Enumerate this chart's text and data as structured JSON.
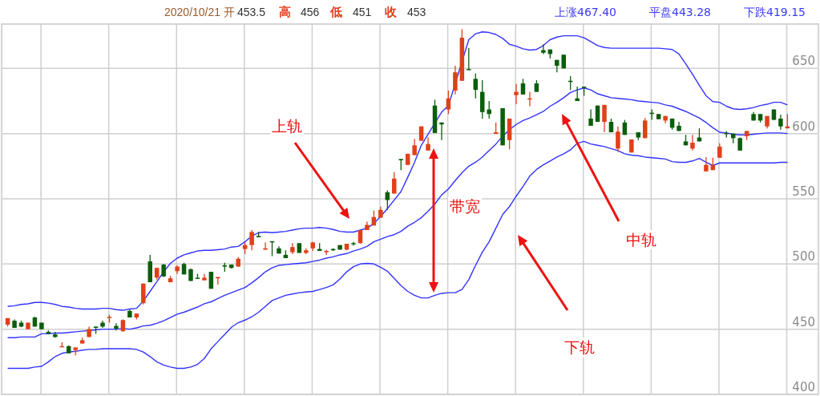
{
  "chart_data": {
    "type": "candlestick",
    "categories": [
      null,
      null,
      null,
      null,
      null,
      null,
      null,
      null,
      null,
      null,
      null,
      null,
      null,
      null,
      null,
      null,
      null,
      null,
      null,
      null,
      null,
      null,
      null,
      null,
      null,
      null,
      null,
      null,
      null,
      null,
      null,
      null,
      null,
      null,
      null,
      null,
      null,
      null,
      null,
      null,
      null,
      null,
      null,
      null,
      null,
      null,
      null,
      null,
      null,
      null,
      null,
      null,
      null,
      null,
      null,
      null,
      null,
      null,
      null,
      null,
      null,
      null,
      null,
      null,
      null,
      null,
      null,
      null,
      null,
      null,
      null,
      null,
      null,
      null,
      null,
      null,
      null,
      null,
      null,
      null,
      null,
      null,
      null,
      null,
      null,
      null,
      null,
      null,
      null,
      null,
      null,
      null,
      null,
      null,
      null,
      null,
      null,
      null,
      null,
      null,
      null,
      null,
      null,
      null,
      null,
      null,
      null,
      null,
      null,
      null,
      null,
      null,
      null,
      null,
      null,
      null
    ],
    "ohlc": [
      [
        453.5,
        458.5,
        452,
        458.5
      ],
      [
        456.5,
        457.5,
        451,
        451
      ],
      [
        455,
        456.5,
        451.5,
        452
      ],
      [
        450,
        455,
        450,
        455
      ],
      [
        459,
        459.5,
        452,
        452
      ],
      [
        455,
        455,
        450,
        450
      ],
      [
        448,
        449,
        446.5,
        446.5
      ],
      [
        446,
        448,
        443.5,
        444
      ],
      [
        436.5,
        440,
        436.5,
        437
      ],
      [
        437,
        437.5,
        431.5,
        431.5
      ],
      [
        434,
        436,
        430,
        436
      ],
      [
        439,
        443.5,
        439,
        441.5
      ],
      [
        444,
        452,
        444,
        450
      ],
      [
        452,
        452,
        446.5,
        451
      ],
      [
        455,
        456.5,
        451,
        452
      ],
      [
        459,
        461,
        455,
        459.5
      ],
      [
        452.5,
        454.5,
        449,
        450.5
      ],
      [
        448.5,
        457.5,
        448,
        457
      ],
      [
        464,
        465,
        459,
        459
      ],
      [
        459,
        462,
        457.5,
        462
      ],
      [
        470,
        485,
        469,
        485
      ],
      [
        502,
        507,
        486,
        486
      ],
      [
        489.5,
        497,
        488,
        497
      ],
      [
        499.5,
        500,
        490,
        490.5
      ],
      [
        486,
        491,
        486,
        489
      ],
      [
        494.5,
        499,
        492.5,
        498
      ],
      [
        500,
        501,
        492,
        492
      ],
      [
        496,
        496.5,
        487,
        487
      ],
      [
        489.5,
        492.5,
        489,
        489
      ],
      [
        487.5,
        492.5,
        487.5,
        489.5
      ],
      [
        494,
        494,
        481,
        481
      ],
      [
        489,
        490,
        484,
        490
      ],
      [
        499,
        501,
        494,
        498
      ],
      [
        499.5,
        499.5,
        496.5,
        497
      ],
      [
        498,
        505.5,
        498,
        504
      ],
      [
        511.5,
        516.5,
        507.5,
        514.5
      ],
      [
        514.5,
        526,
        510.5,
        524.5
      ],
      [
        521.5,
        524.5,
        520.5,
        520.5
      ],
      [
        511,
        516.5,
        511,
        512
      ],
      [
        517.5,
        517.5,
        506,
        517
      ],
      [
        512,
        513.5,
        508,
        508
      ],
      [
        507,
        510.5,
        504.5,
        504.5
      ],
      [
        509,
        516,
        507.5,
        513
      ],
      [
        516,
        516,
        508.5,
        508.5
      ],
      [
        508.5,
        512,
        507.5,
        510.5
      ],
      [
        512,
        517,
        510,
        516.5
      ],
      [
        511.5,
        516,
        510,
        510
      ],
      [
        509.5,
        511,
        507,
        510
      ],
      [
        511.5,
        512,
        510,
        510.5
      ],
      [
        514.5,
        514.5,
        511,
        511
      ],
      [
        511,
        515.5,
        510.5,
        515.5
      ],
      [
        516,
        517,
        514,
        515.5
      ],
      [
        516,
        526,
        515.5,
        526
      ],
      [
        526,
        532.5,
        526,
        530
      ],
      [
        529.5,
        541,
        529.5,
        536
      ],
      [
        535.5,
        544,
        535.5,
        541.5
      ],
      [
        555,
        556.5,
        541.5,
        549
      ],
      [
        554,
        570.5,
        554,
        565.5
      ],
      [
        580.5,
        580.5,
        572,
        580
      ],
      [
        576,
        584.5,
        576,
        584.5
      ],
      [
        583.5,
        596,
        583.5,
        591
      ],
      [
        594.5,
        605.5,
        594.5,
        605.5
      ],
      [
        587,
        597,
        587,
        592
      ],
      [
        621.5,
        626,
        600.5,
        600.5
      ],
      [
        608.5,
        608.5,
        595,
        607
      ],
      [
        618.5,
        633,
        615,
        627
      ],
      [
        633,
        652,
        630,
        647
      ],
      [
        640.5,
        680,
        640.5,
        673.5
      ],
      [
        649.5,
        665.5,
        649,
        649
      ],
      [
        642,
        646,
        627,
        633.5
      ],
      [
        632,
        641,
        611.5,
        616.5
      ],
      [
        618.5,
        625,
        611.5,
        615
      ],
      [
        599.8,
        608.5,
        599.8,
        601
      ],
      [
        619.5,
        619.5,
        591,
        591
      ],
      [
        595,
        611.5,
        588,
        611.5
      ],
      [
        629.5,
        638,
        622.5,
        632
      ],
      [
        638.5,
        642,
        630,
        630
      ],
      [
        626.5,
        632,
        621,
        627
      ],
      [
        638.5,
        641,
        632,
        632
      ],
      [
        664,
        668.5,
        661,
        662
      ],
      [
        664.5,
        664.5,
        657.5,
        661
      ],
      [
        656.5,
        656.5,
        647,
        652
      ],
      [
        660.5,
        660.5,
        650,
        650
      ],
      [
        640.5,
        644,
        633.5,
        640
      ],
      [
        627,
        636,
        625,
        625
      ],
      [
        636,
        636,
        629,
        635
      ],
      [
        611.5,
        618.5,
        606,
        606
      ],
      [
        621.5,
        621.5,
        609,
        609
      ],
      [
        609,
        622,
        601,
        622
      ],
      [
        609,
        611.5,
        601,
        601
      ],
      [
        588.5,
        605.5,
        586,
        601.5
      ],
      [
        608.5,
        610.5,
        599,
        599
      ],
      [
        585.5,
        595.5,
        585.5,
        595.5
      ],
      [
        601,
        601,
        595,
        597
      ],
      [
        596.5,
        612,
        596.5,
        610
      ],
      [
        616,
        618.5,
        610.5,
        615
      ],
      [
        615,
        615,
        611,
        611
      ],
      [
        610,
        613.5,
        608,
        613.5
      ],
      [
        611.5,
        611.5,
        603,
        604.5
      ],
      [
        606,
        609,
        602,
        602
      ],
      [
        594,
        599,
        591,
        591
      ],
      [
        588.5,
        599,
        587,
        593
      ],
      [
        597,
        604,
        594,
        594
      ],
      [
        571,
        582,
        571,
        576
      ],
      [
        572,
        581.5,
        572,
        576
      ],
      [
        581.5,
        592.5,
        581.5,
        590
      ],
      [
        600.5,
        602,
        597,
        600
      ],
      [
        600,
        600,
        592.5,
        596.5
      ],
      [
        596.5,
        597,
        587,
        587
      ],
      [
        598,
        602,
        595,
        602
      ],
      [
        615,
        616.5,
        610,
        610
      ],
      [
        615,
        615,
        608.5,
        610
      ],
      [
        605.5,
        613.5,
        604,
        613.5
      ],
      [
        618.5,
        618.5,
        610.5,
        610.5
      ],
      [
        611.5,
        614.5,
        603,
        605.5
      ],
      [
        604,
        615,
        604,
        605.5
      ]
    ],
    "colors": [
      "#e0401a",
      "#0b5e0b",
      "#0b5e0b",
      "#e0401a",
      "#0b5e0b",
      "#0b5e0b",
      "#0b5e0b",
      "#0b5e0b",
      "#e0401a",
      "#0b5e0b",
      "#e0401a",
      "#e0401a",
      "#e0401a",
      "#0b5e0b",
      "#0b5e0b",
      "#e0401a",
      "#0b5e0b",
      "#e0401a",
      "#0b5e0b",
      "#e0401a",
      "#e0401a",
      "#0b5e0b",
      "#e0401a",
      "#0b5e0b",
      "#e0401a",
      "#e0401a",
      "#0b5e0b",
      "#0b5e0b",
      "#0b5e0b",
      "#e0401a",
      "#0b5e0b",
      "#e0401a",
      "#0b5e0b",
      "#0b5e0b",
      "#e0401a",
      "#e0401a",
      "#e0401a",
      "#0b5e0b",
      "#e0401a",
      "#0b5e0b",
      "#0b5e0b",
      "#0b5e0b",
      "#e0401a",
      "#0b5e0b",
      "#e0401a",
      "#e0401a",
      "#0b5e0b",
      "#e0401a",
      "#0b5e0b",
      "#0b5e0b",
      "#e0401a",
      "#0b5e0b",
      "#e0401a",
      "#e0401a",
      "#e0401a",
      "#e0401a",
      "#0b5e0b",
      "#e0401a",
      "#0b5e0b",
      "#e0401a",
      "#e0401a",
      "#e0401a",
      "#e0401a",
      "#0b5e0b",
      "#0b5e0b",
      "#e0401a",
      "#e0401a",
      "#e0401a",
      "#0b5e0b",
      "#0b5e0b",
      "#0b5e0b",
      "#0b5e0b",
      "#e0401a",
      "#0b5e0b",
      "#e0401a",
      "#e0401a",
      "#0b5e0b",
      "#e0401a",
      "#0b5e0b",
      "#0b5e0b",
      "#0b5e0b",
      "#0b5e0b",
      "#0b5e0b",
      "#0b5e0b",
      "#0b5e0b",
      "#0b5e0b",
      "#0b5e0b",
      "#0b5e0b",
      "#e0401a",
      "#0b5e0b",
      "#e0401a",
      "#0b5e0b",
      "#e0401a",
      "#0b5e0b",
      "#e0401a",
      "#0b5e0b",
      "#0b5e0b",
      "#e0401a",
      "#0b5e0b",
      "#0b5e0b",
      "#0b5e0b",
      "#e0401a",
      "#0b5e0b",
      "#e0401a",
      "#e0401a",
      "#e0401a",
      "#0b5e0b",
      "#0b5e0b",
      "#0b5e0b",
      "#e0401a",
      "#0b5e0b",
      "#0b5e0b",
      "#e0401a",
      "#0b5e0b",
      "#0b5e0b",
      "#e0401a"
    ],
    "series": [
      {
        "type": "line",
        "color": "#3333ff",
        "values": [
          467.5,
          468,
          469,
          469.5,
          470.5,
          470.5,
          470,
          469,
          467.5,
          467,
          466,
          465.5,
          465.5,
          465.5,
          466,
          466,
          465,
          464.5,
          465.5,
          466,
          471.5,
          479,
          486.5,
          494,
          500.5,
          504.5,
          507,
          508.5,
          510,
          510.5,
          510.5,
          511,
          511.5,
          513,
          513.5,
          517,
          521.5,
          524,
          524.5,
          524,
          524.5,
          525,
          526,
          527,
          527.5,
          527.5,
          528,
          527.5,
          526.5,
          525,
          524.5,
          524.5,
          526,
          527.5,
          531,
          536.5,
          542.5,
          549,
          555.5,
          566.5,
          578,
          591,
          599.5,
          null,
          616.5,
          621.5,
          null,
          null,
          672,
          676.5,
          678,
          677.5,
          676,
          673,
          668.5,
          667,
          665,
          664,
          664.5,
          667.5,
          672,
          674,
          675,
          675,
          675,
          673.5,
          670.5,
          667.5,
          666,
          665.5,
          665.5,
          665.5,
          665.5,
          665.5,
          665.5,
          665.5,
          665.5,
          665,
          664.5,
          661,
          653.5,
          645.5,
          637,
          629,
          624.5,
          624,
          621,
          619,
          618.5,
          619,
          620,
          621.5,
          622.5,
          624,
          624,
          622
        ]
      },
      {
        "type": "line",
        "color": "#3333ff",
        "values": [
          443.5,
          443.5,
          444,
          444,
          444,
          446.5,
          446.5,
          447,
          447,
          447.5,
          448,
          448.5,
          449,
          449.5,
          450,
          450,
          450,
          450.5,
          450,
          451,
          452.5,
          453,
          454.5,
          456.5,
          459,
          461.5,
          463,
          465,
          467,
          469.5,
          471,
          473.5,
          476,
          478,
          480,
          482,
          485.5,
          489.5,
          494,
          497,
          499,
          499.5,
          500,
          500.5,
          501,
          502,
          503,
          504.5,
          505.5,
          507,
          508,
          510,
          511.5,
          513.5,
          517,
          519,
          521,
          522.5,
          525,
          529,
          532,
          535.5,
          540.5,
          546,
          553,
          557.5,
          564,
          570,
          575,
          578,
          582,
          587,
          592,
          598,
          603,
          607,
          610,
          612,
          614.5,
          617,
          621,
          624,
          627.5,
          631.5,
          633.5,
          635,
          633.5,
          630.5,
          629,
          627.5,
          627,
          626.5,
          626,
          625,
          624.5,
          624,
          623.5,
          622,
          621,
          619,
          617,
          614.5,
          612,
          608.5,
          604.5,
          601,
          600.5,
          599.5,
          599,
          599,
          599.5,
          600,
          600.5,
          600.5,
          600.5,
          600
        ]
      },
      {
        "type": "line",
        "color": "#3333ff",
        "values": [
          420,
          420,
          420,
          420,
          421,
          421.5,
          425,
          429,
          431.5,
          432.5,
          433,
          434,
          434.5,
          434.5,
          435,
          435,
          435,
          435,
          435,
          434.5,
          432.5,
          429,
          425,
          422.5,
          421,
          420,
          420,
          421,
          423,
          427.5,
          435,
          440.5,
          446,
          451.5,
          455,
          457,
          459.5,
          463,
          467.5,
          472,
          474,
          476,
          477,
          478,
          478.5,
          479,
          480.5,
          482,
          484,
          488.5,
          494,
          498,
          500,
          500.5,
          500,
          497.5,
          494.5,
          489,
          483.5,
          479,
          476,
          474,
          474,
          476,
          477.5,
          478,
          478,
          480.5,
          488,
          499,
          509,
          517,
          527.5,
          538,
          544,
          552,
          559.5,
          567.5,
          572.5,
          576,
          579,
          582,
          584.5,
          587.5,
          592.5,
          594,
          592,
          591,
          590,
          588.5,
          587,
          584.5,
          583.5,
          583,
          582,
          581.5,
          581,
          580.5,
          578.5,
          578,
          578,
          579,
          581,
          578,
          575.5,
          577.5,
          577.5,
          577.5,
          577.5,
          577.5,
          577.5,
          577.5,
          577.5,
          577.5,
          578,
          578
        ]
      }
    ],
    "ylim": [
      400,
      684
    ],
    "yticks": [
      400,
      450,
      500,
      550,
      600,
      650
    ],
    "grid": true,
    "tick_labels": "y",
    "annotations": [
      "2020/10/21 开",
      "453.5",
      "高",
      "456",
      "低",
      "451",
      "收",
      "453",
      "上涨467.40",
      "平盘443.28",
      "下跌419.15",
      "上轨",
      "带宽",
      "中轨",
      "下轨"
    ]
  }
}
